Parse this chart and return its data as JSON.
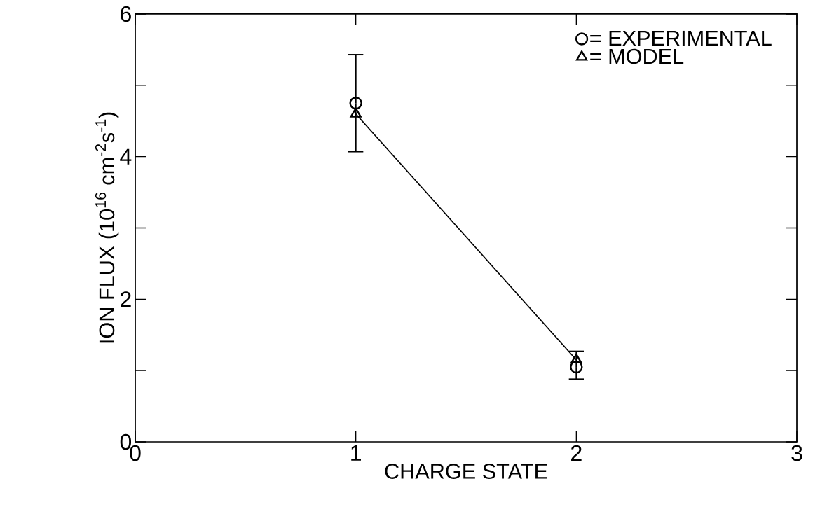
{
  "chart_data": {
    "type": "line",
    "xlabel": "CHARGE STATE",
    "ylabel": "ION FLUX (10$^{16}$ cm$^{-2}$s$^{-1}$)",
    "xlim": [
      0,
      3
    ],
    "xticks": [
      0,
      1,
      2,
      3
    ],
    "ylim": [
      0,
      6
    ],
    "yticks": [
      0,
      {
        "value": 1,
        "label": null
      },
      2,
      {
        "value": 3,
        "label": null
      },
      4,
      {
        "value": 5,
        "label": null
      },
      6
    ],
    "legend": "top right",
    "x": [
      1,
      2
    ],
    "series": [
      {
        "name": "= EXPERIMENTAL",
        "type": "scatter",
        "marker": "circle",
        "color": "#000000",
        "values": [
          4.75,
          1.05
        ],
        "errors": [
          [
            4.07,
            5.43
          ],
          [
            0.88,
            1.27
          ]
        ]
      },
      {
        "name": "= MODEL",
        "marker": "triangle",
        "color": "#000000",
        "values": [
          4.6,
          1.15
        ]
      }
    ]
  }
}
